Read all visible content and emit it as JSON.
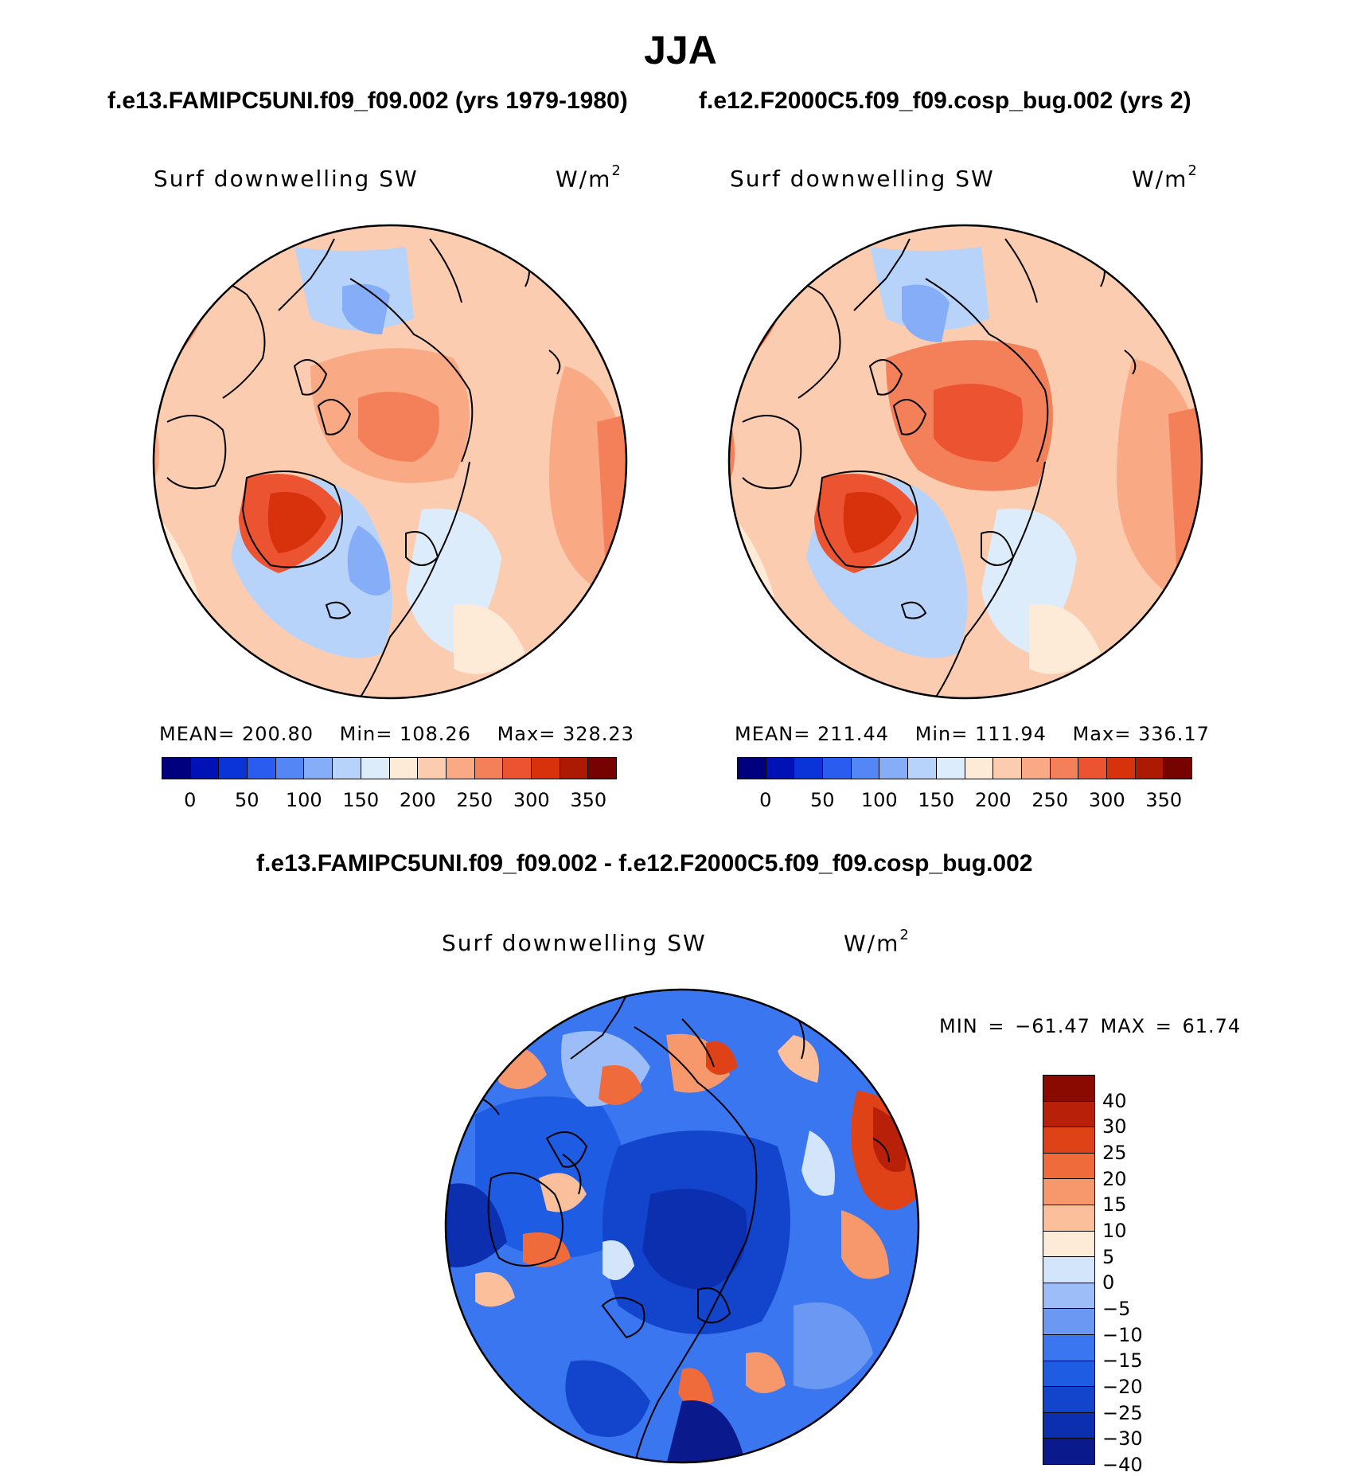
{
  "figure": {
    "title": "JJA",
    "case1_title": "f.e13.FAMIPC5UNI.f09_f09.002 (yrs 1979-1980)",
    "case2_title": "f.e12.F2000C5.f09_f09.cosp_bug.002 (yrs 2)",
    "diff_title": "f.e13.FAMIPC5UNI.f09_f09.002 - f.e12.F2000C5.f09_f09.cosp_bug.002"
  },
  "panels": [
    {
      "variable": "Surf downwelling SW",
      "units": "W/m",
      "units_exp": "2",
      "mean_label": "MEAN=",
      "mean": "200.80",
      "min_label": "Min=",
      "min": "108.26",
      "max_label": "Max=",
      "max": "328.23"
    },
    {
      "variable": "Surf downwelling SW",
      "units": "W/m",
      "units_exp": "2",
      "mean_label": "MEAN=",
      "mean": "211.44",
      "min_label": "Min=",
      "min": "111.94",
      "max_label": "Max=",
      "max": "336.17"
    },
    {
      "variable": "Surf downwelling SW",
      "units": "W/m",
      "units_exp": "2",
      "minmax_text": "MIN = −61.47 MAX =   61.74"
    }
  ],
  "colorbars": {
    "absolute": {
      "colors": [
        "#00007f",
        "#0011b5",
        "#0a34d8",
        "#2a5cf0",
        "#5586f5",
        "#86adf8",
        "#b8d3fa",
        "#dcecfb",
        "#fdebd8",
        "#fcccb0",
        "#f9a984",
        "#f4805a",
        "#ec5330",
        "#d8320c",
        "#ad1a04",
        "#760300"
      ],
      "tick_labels": [
        "0",
        "50",
        "100",
        "150",
        "200",
        "250",
        "300",
        "350"
      ]
    },
    "difference": {
      "colors": [
        "#0a1a8c",
        "#0c2fb0",
        "#1245cc",
        "#1d5ce3",
        "#3a76ef",
        "#6b98f3",
        "#9cbdf7",
        "#d2e5fb",
        "#fdebd8",
        "#fbbf9c",
        "#f7986c",
        "#f06b3c",
        "#e04218",
        "#b8200a",
        "#8a0a02"
      ],
      "tick_labels": [
        "40",
        "30",
        "25",
        "20",
        "15",
        "10",
        "5",
        "0",
        "−5",
        "−10",
        "−15",
        "−20",
        "−25",
        "−30",
        "−40"
      ]
    }
  },
  "chart_data": [
    {
      "type": "heatmap",
      "title": "Surf downwelling SW",
      "subtitle": "f.e13.FAMIPC5UNI.f09_f09.002 (yrs 1979-1980)",
      "units": "W/m2",
      "projection": "north polar stereographic",
      "mean": 200.8,
      "min": 108.26,
      "max": 328.23,
      "levels": [
        0,
        50,
        100,
        150,
        200,
        250,
        300,
        350
      ]
    },
    {
      "type": "heatmap",
      "title": "Surf downwelling SW",
      "subtitle": "f.e12.F2000C5.f09_f09.cosp_bug.002 (yrs 2)",
      "units": "W/m2",
      "projection": "north polar stereographic",
      "mean": 211.44,
      "min": 111.94,
      "max": 336.17,
      "levels": [
        0,
        50,
        100,
        150,
        200,
        250,
        300,
        350
      ]
    },
    {
      "type": "heatmap",
      "title": "Surf downwelling SW",
      "subtitle": "f.e13.FAMIPC5UNI.f09_f09.002 - f.e12.F2000C5.f09_f09.cosp_bug.002",
      "units": "W/m2",
      "projection": "north polar stereographic",
      "min": -61.47,
      "max": 61.74,
      "levels": [
        -40,
        -30,
        -25,
        -20,
        -15,
        -10,
        -5,
        0,
        5,
        10,
        15,
        20,
        25,
        30,
        40
      ]
    }
  ]
}
